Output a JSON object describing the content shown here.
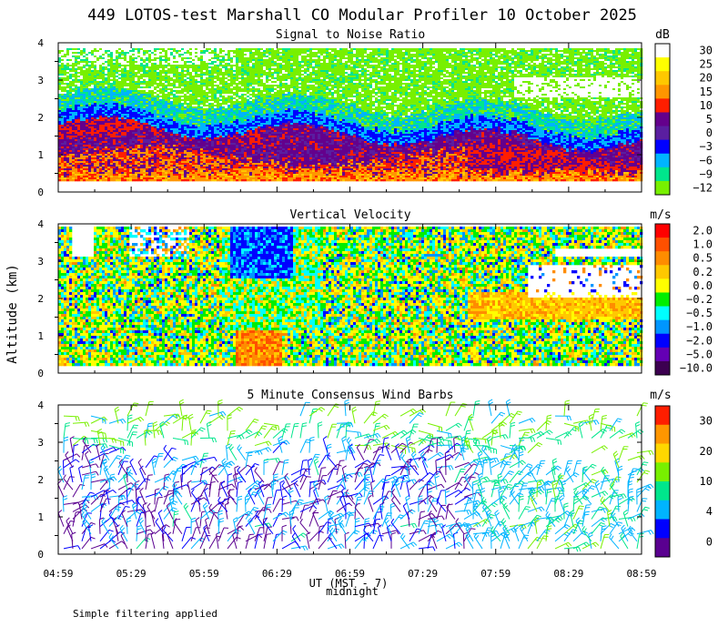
{
  "title": "449 LOTOS-test Marshall CO Modular Profiler 10 October 2025",
  "ylabel": "Altitude (km)",
  "xlabel": "UT (MST - 7)",
  "midnight_label": "midnight",
  "footnote": "Simple filtering applied",
  "x_ticks": [
    "04:59",
    "05:29",
    "05:59",
    "06:29",
    "06:59",
    "07:29",
    "07:59",
    "08:29",
    "08:59"
  ],
  "y_ticks": [
    "0",
    "1",
    "2",
    "3",
    "4"
  ],
  "chart_data": [
    {
      "type": "heatmap",
      "title": "Signal to Noise Ratio",
      "unit": "dB",
      "ylim": [
        0,
        4
      ],
      "legend_labels": [
        "30",
        "25",
        "20",
        "15",
        "10",
        "5",
        "0",
        "−3",
        "−6",
        "−9",
        "−12"
      ],
      "legend_colors": [
        "#ffffff",
        "#ffff00",
        "#ffc800",
        "#ff9600",
        "#ff1e00",
        "#64008c",
        "#5a1ea0",
        "#0000ff",
        "#00b4ff",
        "#00e68c",
        "#78f000"
      ]
    },
    {
      "type": "heatmap",
      "title": "Vertical Velocity",
      "unit": "m/s",
      "ylim": [
        0,
        4
      ],
      "legend_labels": [
        "2.0",
        "1.0",
        "0.5",
        "0.2",
        "0.0",
        "−0.2",
        "−0.5",
        "−1.0",
        "−2.0",
        "−5.0",
        "−10.0"
      ],
      "legend_colors": [
        "#ff0000",
        "#ff5000",
        "#ff8c00",
        "#ffc800",
        "#ffff00",
        "#00ee00",
        "#00ffff",
        "#0096ff",
        "#0000ff",
        "#6400b4",
        "#3c0050"
      ]
    },
    {
      "type": "wind_barbs",
      "title": "5 Minute Consensus Wind Barbs",
      "unit": "m/s",
      "ylim": [
        0,
        4
      ],
      "legend_labels": [
        "30",
        "20",
        "10",
        "4",
        "0"
      ],
      "legend_colors": [
        "#ff1e00",
        "#ff9600",
        "#ffd700",
        "#78f000",
        "#00e68c",
        "#00b4ff",
        "#0000ff",
        "#5a0090"
      ]
    }
  ]
}
